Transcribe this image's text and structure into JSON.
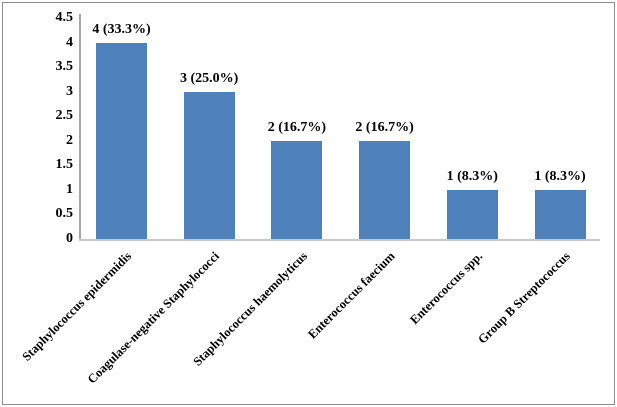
{
  "chart_data": {
    "type": "bar",
    "title": "",
    "xlabel": "",
    "ylabel": "",
    "categories": [
      "Staphylococcus epidermidis",
      "Coagulase-negative Staphylococci",
      "Staphylococcus haemolyticus",
      "Enterococcus faecium",
      "Enterococcus spp.",
      "Group B Streptococcus"
    ],
    "values": [
      4,
      3,
      2,
      2,
      1,
      1
    ],
    "bar_labels": [
      "4 (33.3%)",
      "3 (25.0%)",
      "2 (16.7%)",
      "2 (16.7%)",
      "1 (8.3%)",
      "1 (8.3%)"
    ],
    "ylim": [
      0,
      4.5
    ],
    "yticks": [
      0,
      0.5,
      1,
      1.5,
      2,
      2.5,
      3,
      3.5,
      4,
      4.5
    ],
    "ytick_labels": [
      "0",
      "0.5",
      "1",
      "1.5",
      "2",
      "2.5",
      "3",
      "3.5",
      "4",
      "4.5"
    ],
    "grid": false,
    "legend": null,
    "category_label_rotation_deg": 45,
    "colors": {
      "bar": "#4f81bd",
      "y_axis_line": "#a6a6a6",
      "x_axis_line": "#c9c9c9",
      "text": "#000000",
      "figure_border": "#8e8e8e",
      "background": "#ffffff"
    }
  }
}
